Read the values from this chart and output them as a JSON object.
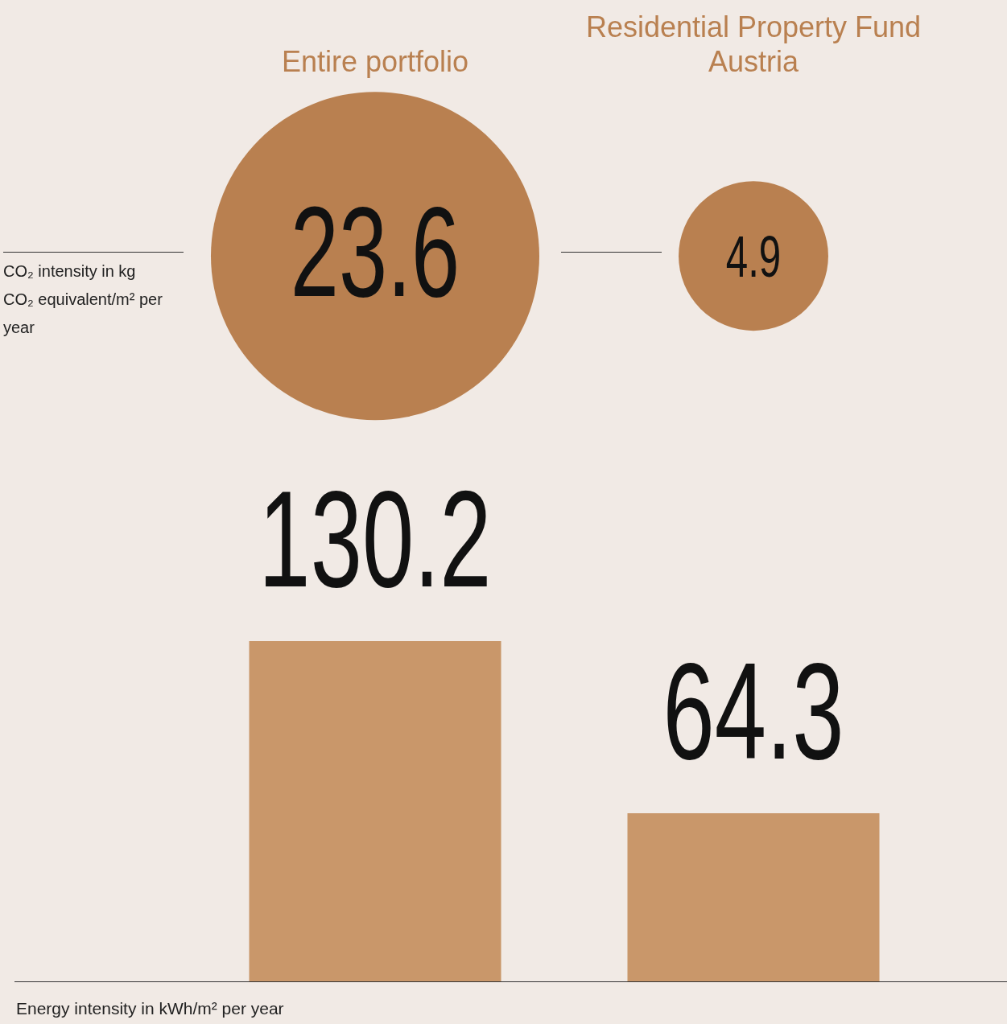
{
  "chart_data": [
    {
      "type": "other",
      "categories": [
        "Entire portfolio",
        "Residential Property Fund Austria"
      ],
      "values": [
        23.6,
        4.9
      ],
      "data_labels": true,
      "color": "#b98050",
      "ylabel": "CO₂ intensity in kg CO₂ equivalent/m² per year"
    },
    {
      "type": "bar",
      "categories": [
        null,
        null
      ],
      "values": [
        130.2,
        64.3
      ],
      "color": "#c9976a",
      "data_labels": true,
      "xlabel": "Energy intensity in kWh/m² per year"
    }
  ]
}
